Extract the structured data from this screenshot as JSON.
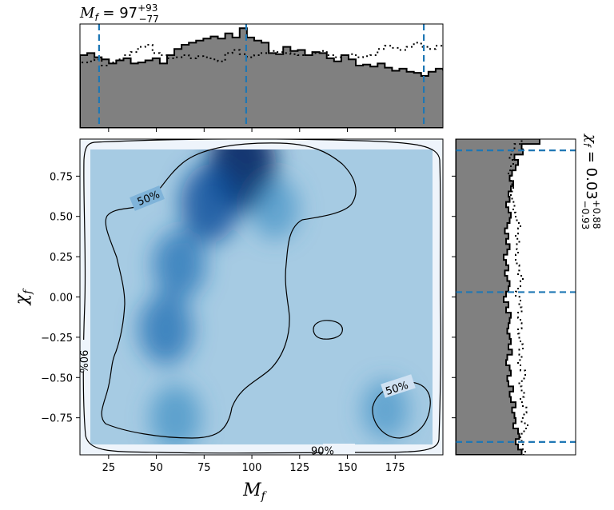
{
  "chart_data": [
    {
      "type": "heatmap",
      "panel": "joint",
      "xlabel_main": "M",
      "xlabel_sub": "f",
      "ylabel_main": "χ",
      "ylabel_sub": "f",
      "xlim": [
        10,
        200
      ],
      "ylim": [
        -0.98,
        0.98
      ],
      "xticks": [
        25,
        50,
        75,
        100,
        125,
        150,
        175
      ],
      "xtick_labels": [
        "25",
        "50",
        "75",
        "100",
        "125",
        "150",
        "175"
      ],
      "yticks": [
        0.75,
        0.5,
        0.25,
        0.0,
        -0.25,
        -0.5,
        -0.75
      ],
      "ytick_labels": [
        "0.75",
        "0.50",
        "0.25",
        "0.00",
        "−0.25",
        "−0.50",
        "−0.75"
      ],
      "colormap": "Blues",
      "density_peaks": [
        {
          "x": 95,
          "y": 0.82,
          "w": 1.0
        },
        {
          "x": 78,
          "y": 0.58,
          "w": 0.7
        },
        {
          "x": 62,
          "y": 0.2,
          "w": 0.5
        },
        {
          "x": 55,
          "y": -0.2,
          "w": 0.55
        },
        {
          "x": 60,
          "y": -0.75,
          "w": 0.45
        },
        {
          "x": 170,
          "y": -0.7,
          "w": 0.3
        },
        {
          "x": 112,
          "y": 0.55,
          "w": 0.35
        }
      ],
      "contour_labels": [
        {
          "text": "50%",
          "x": 46,
          "y": 0.61
        },
        {
          "text": "50%",
          "x": 176,
          "y": -0.57
        },
        {
          "text": "90%",
          "x": 11.5,
          "y": -0.4
        },
        {
          "text": "90%",
          "x": 137,
          "y": -0.96
        }
      ]
    },
    {
      "type": "bar",
      "panel": "top-marginal",
      "title_main": "M",
      "title_sub": "f",
      "title_value": " = 97",
      "title_sup": "+93",
      "title_inf": "−77",
      "xlim": [
        10,
        200
      ],
      "bin_edges_start": 10,
      "bin_width": 3.8,
      "values": [
        70,
        72,
        68,
        66,
        62,
        65,
        67,
        62,
        63,
        65,
        67,
        62,
        70,
        76,
        80,
        82,
        84,
        86,
        88,
        86,
        91,
        87,
        96,
        87,
        84,
        82,
        72,
        71,
        78,
        74,
        75,
        70,
        73,
        72,
        67,
        64,
        70,
        66,
        60,
        61,
        59,
        62,
        58,
        55,
        57,
        54,
        53,
        50,
        54,
        57,
        56,
        58,
        52,
        54,
        57,
        53,
        55,
        52,
        60,
        55
      ],
      "dotted_values": [
        63,
        64,
        66,
        60,
        63,
        66,
        70,
        73,
        78,
        80,
        72,
        70,
        67,
        68,
        70,
        67,
        69,
        68,
        66,
        64,
        72,
        75,
        71,
        68,
        70,
        72,
        74,
        73,
        72,
        71,
        70,
        70,
        72,
        74,
        70,
        68,
        70,
        71,
        68,
        69,
        70,
        76,
        79,
        77,
        75,
        78,
        82,
        78,
        76,
        79,
        77,
        76,
        74,
        73,
        75,
        76,
        78,
        77,
        74,
        72
      ],
      "ylim": [
        0,
        100
      ],
      "quantile_lines": [
        20,
        97,
        190
      ]
    },
    {
      "type": "bar",
      "panel": "right-marginal",
      "orientation": "horizontal",
      "label_main": "χ",
      "label_sub": "f",
      "label_value": " = 0.03",
      "label_sup": "+0.88",
      "label_inf": "−0.93",
      "ylim": [
        -0.98,
        0.98
      ],
      "bin_edges_start": -0.98,
      "bin_width": 0.0327,
      "values": [
        55,
        52,
        50,
        53,
        52,
        48,
        50,
        49,
        47,
        50,
        46,
        45,
        48,
        44,
        43,
        46,
        45,
        42,
        43,
        47,
        44,
        46,
        45,
        43,
        44,
        45,
        46,
        42,
        44,
        40,
        42,
        44,
        45,
        43,
        41,
        44,
        42,
        40,
        43,
        45,
        42,
        44,
        41,
        43,
        45,
        46,
        44,
        42,
        45,
        44,
        46,
        48,
        45,
        47,
        50,
        52,
        49,
        56,
        55,
        70
      ],
      "dotted_values": [
        58,
        56,
        55,
        54,
        57,
        60,
        55,
        57,
        59,
        56,
        54,
        57,
        55,
        53,
        57,
        58,
        54,
        52,
        55,
        53,
        56,
        54,
        53,
        52,
        55,
        54,
        52,
        55,
        53,
        54,
        50,
        52,
        54,
        56,
        52,
        53,
        51,
        50,
        52,
        51,
        53,
        50,
        52,
        54,
        51,
        50,
        48,
        49,
        47,
        46,
        48,
        47,
        46,
        44,
        46,
        48,
        45,
        47,
        49,
        55
      ],
      "xlim": [
        0,
        100
      ],
      "quantile_lines": [
        -0.9,
        0.03,
        0.91
      ]
    }
  ]
}
